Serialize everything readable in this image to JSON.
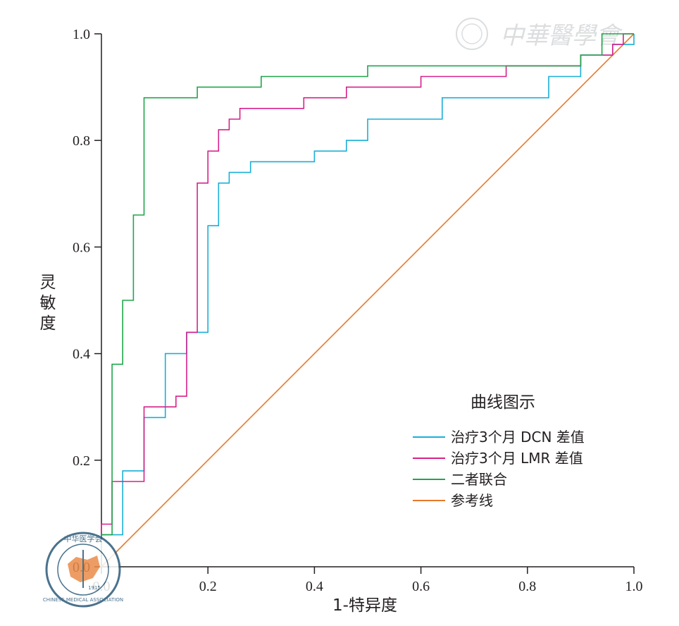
{
  "chart_data": {
    "type": "line",
    "xlabel": "1-特异度",
    "ylabel": "灵敏度",
    "xlim": [
      0,
      1
    ],
    "ylim": [
      0,
      1
    ],
    "xticks": [
      "0.0",
      "0.2",
      "0.4",
      "0.6",
      "0.8",
      "1.0"
    ],
    "yticks": [
      "0.0",
      "0.2",
      "0.4",
      "0.6",
      "0.8",
      "1.0"
    ],
    "grid": false,
    "legend": {
      "title": "曲线图示",
      "placement": "lower-right"
    },
    "series": [
      {
        "name": "治疗3个月 DCN 差值",
        "color": "#1aafd6",
        "x": [
          0,
          0,
          0.04,
          0.04,
          0.08,
          0.08,
          0.12,
          0.12,
          0.16,
          0.16,
          0.2,
          0.2,
          0.22,
          0.22,
          0.24,
          0.24,
          0.28,
          0.28,
          0.4,
          0.4,
          0.46,
          0.46,
          0.5,
          0.5,
          0.64,
          0.64,
          0.84,
          0.84,
          0.9,
          0.9,
          0.96,
          0.96,
          1.0,
          1.0
        ],
        "y": [
          0,
          0.06,
          0.06,
          0.18,
          0.18,
          0.28,
          0.28,
          0.4,
          0.4,
          0.44,
          0.44,
          0.64,
          0.64,
          0.72,
          0.72,
          0.74,
          0.74,
          0.76,
          0.76,
          0.78,
          0.78,
          0.8,
          0.8,
          0.84,
          0.84,
          0.88,
          0.88,
          0.92,
          0.92,
          0.96,
          0.96,
          0.98,
          0.98,
          1.0
        ]
      },
      {
        "name": "治疗3个月 LMR 差值",
        "color": "#d6218b",
        "x": [
          0,
          0,
          0.02,
          0.02,
          0.08,
          0.08,
          0.14,
          0.14,
          0.16,
          0.16,
          0.18,
          0.18,
          0.2,
          0.2,
          0.22,
          0.22,
          0.24,
          0.24,
          0.26,
          0.26,
          0.38,
          0.38,
          0.46,
          0.46,
          0.6,
          0.6,
          0.76,
          0.76,
          0.9,
          0.9,
          0.96,
          0.96,
          0.98,
          0.98,
          1.0
        ],
        "y": [
          0,
          0.08,
          0.08,
          0.16,
          0.16,
          0.3,
          0.3,
          0.32,
          0.32,
          0.44,
          0.44,
          0.72,
          0.72,
          0.78,
          0.78,
          0.82,
          0.82,
          0.84,
          0.84,
          0.86,
          0.86,
          0.88,
          0.88,
          0.9,
          0.9,
          0.92,
          0.92,
          0.94,
          0.94,
          0.96,
          0.96,
          0.98,
          0.98,
          1.0,
          1.0
        ]
      },
      {
        "name": "二者联合",
        "color": "#1fa64a",
        "x": [
          0,
          0,
          0.02,
          0.02,
          0.04,
          0.04,
          0.06,
          0.06,
          0.08,
          0.08,
          0.18,
          0.18,
          0.3,
          0.3,
          0.5,
          0.5,
          0.9,
          0.9,
          0.94,
          0.94,
          1.0
        ],
        "y": [
          0,
          0.06,
          0.06,
          0.38,
          0.38,
          0.5,
          0.5,
          0.66,
          0.66,
          0.88,
          0.88,
          0.9,
          0.9,
          0.92,
          0.92,
          0.94,
          0.94,
          0.96,
          0.96,
          1.0,
          1.0
        ]
      },
      {
        "name": "参考线",
        "color": "#e8782a",
        "x": [
          0,
          1
        ],
        "y": [
          0,
          1
        ]
      }
    ]
  },
  "watermark": {
    "text": "中華醫學會",
    "seal_text": "中华医学会",
    "seal_ring_text": "CHINESE MEDICAL ASSOCIATION",
    "seal_year": "1915"
  }
}
